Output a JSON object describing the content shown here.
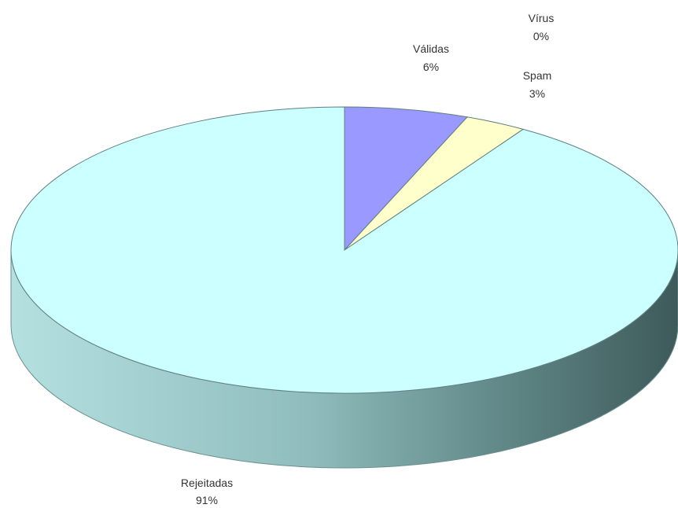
{
  "chart_data": {
    "type": "pie",
    "style": "3d",
    "slices": [
      {
        "label": "Válidas",
        "pct_label": "6%",
        "value": 6,
        "color": "#9999ff"
      },
      {
        "label": "Spam",
        "pct_label": "3%",
        "value": 3,
        "color": "#ffffcc"
      },
      {
        "label": "Rejeitadas",
        "pct_label": "91%",
        "value": 91,
        "color": "#ccffff"
      },
      {
        "label": "Vírus",
        "pct_label": "0%",
        "value": 0,
        "color": "#ff8080"
      }
    ],
    "legend": "none"
  }
}
